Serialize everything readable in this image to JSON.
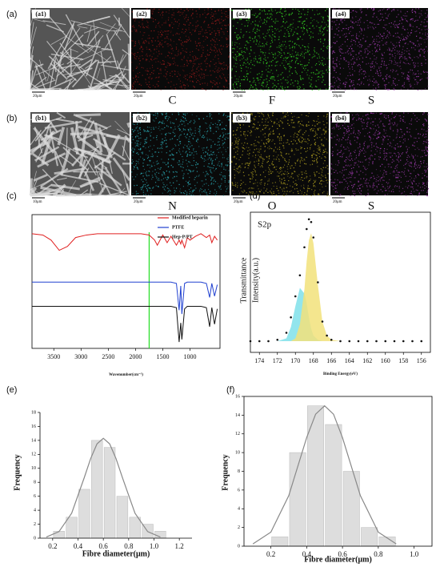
{
  "images": {
    "rows": [
      {
        "label": "(a)",
        "tiles": [
          {
            "label": "(a1)",
            "color": "#777777",
            "scale": "20μm"
          },
          {
            "label": "(a2)",
            "color": "#8a1a1a",
            "element": "C",
            "scale": "20μm"
          },
          {
            "label": "(a3)",
            "color": "#33cc22",
            "element": "F",
            "scale": "20μm"
          },
          {
            "label": "(a4)",
            "color": "#9a3aa8",
            "element": "S",
            "scale": "20μm"
          }
        ]
      },
      {
        "label": "(b)",
        "tiles": [
          {
            "label": "(b1)",
            "color": "#8a8a8a",
            "scale": "10μm"
          },
          {
            "label": "(b2)",
            "color": "#2aa6b0",
            "element": "N",
            "scale": "20μm"
          },
          {
            "label": "(b3)",
            "color": "#b0a020",
            "element": "O",
            "scale": "20μm"
          },
          {
            "label": "(b4)",
            "color": "#9a3aa8",
            "element": "S",
            "scale": "20μm"
          }
        ]
      }
    ]
  },
  "chart_data": [
    {
      "type": "line",
      "panel": "(c)",
      "x_label": "Wavenumber(cm⁻¹)",
      "y_label": "Transmittance",
      "xlim": [
        3900,
        450
      ],
      "xticks": [
        3500,
        3000,
        2500,
        2000,
        1500,
        1000
      ],
      "ylim": [
        -5,
        100
      ],
      "marker_line": {
        "x": 1750,
        "color": "#22dd22"
      },
      "legend": "top-right",
      "x": [
        3900,
        3700,
        3550,
        3400,
        3250,
        3100,
        2900,
        2700,
        2400,
        2100,
        1900,
        1750,
        1650,
        1600,
        1500,
        1420,
        1350,
        1250,
        1200,
        1170,
        1150,
        1100,
        1050,
        1000,
        900,
        800,
        700,
        640,
        600,
        550,
        500
      ],
      "series": [
        {
          "name": "Modified heparin",
          "color": "#e02020",
          "values": [
            85,
            84,
            80,
            72,
            75,
            82,
            84,
            85,
            85,
            85,
            85,
            84,
            80,
            76,
            84,
            78,
            83,
            76,
            80,
            77,
            80,
            74,
            82,
            80,
            83,
            85,
            82,
            84,
            78,
            83,
            80
          ]
        },
        {
          "name": "PTFE",
          "color": "#2040d0",
          "values": [
            47,
            47,
            47,
            47,
            47,
            47,
            47,
            47,
            47,
            47,
            47,
            47,
            47,
            47,
            47,
            47,
            47,
            46,
            25,
            44,
            22,
            46,
            47,
            47,
            47,
            47,
            46,
            35,
            46,
            36,
            45
          ]
        },
        {
          "name": "Hep-P/PT",
          "color": "#111111",
          "values": [
            28,
            28,
            28,
            28,
            28,
            28,
            28,
            28,
            28,
            28,
            28,
            28,
            28,
            28,
            28,
            28,
            28,
            27,
            0,
            15,
            2,
            26,
            28,
            28,
            28,
            28,
            27,
            12,
            27,
            14,
            26
          ]
        }
      ]
    },
    {
      "type": "xps",
      "panel": "(d)",
      "annotation": "S2p",
      "x_label": "Binding Energy(eV)",
      "y_label": "Intensity(a.u.)",
      "xlim": [
        175,
        155
      ],
      "xticks": [
        174,
        172,
        170,
        168,
        166,
        164,
        162,
        160,
        158,
        156
      ],
      "ylim": [
        0,
        100
      ],
      "x": [
        175,
        174,
        173,
        172,
        171,
        170.5,
        170,
        169.5,
        169,
        168.75,
        168.5,
        168.25,
        168,
        167.5,
        167,
        166.5,
        166,
        165,
        164,
        163,
        162,
        161,
        160,
        159,
        158,
        157,
        156
      ],
      "series": [
        {
          "color": "#7fe0ea",
          "fill": true,
          "values": [
            8,
            8,
            8,
            8,
            10,
            18,
            33,
            46,
            42,
            35,
            25,
            17,
            12,
            9,
            8,
            8,
            8,
            8,
            8,
            8,
            8,
            8,
            8,
            8,
            8,
            8,
            8
          ]
        },
        {
          "color": "#f2e27a",
          "fill": true,
          "values": [
            8,
            8,
            8,
            8,
            8,
            8,
            10,
            20,
            45,
            65,
            80,
            85,
            78,
            48,
            22,
            12,
            9,
            8,
            8,
            8,
            8,
            8,
            8,
            8,
            8,
            8,
            8
          ]
        },
        {
          "color": "#111111",
          "values": [
            8,
            8,
            8,
            9,
            14,
            25,
            40,
            55,
            75,
            88,
            95,
            93,
            82,
            50,
            22,
            12,
            9,
            8,
            8,
            8,
            8,
            8,
            8,
            8,
            8,
            8,
            8
          ]
        }
      ]
    },
    {
      "type": "histogram",
      "panel": "(e)",
      "x_label": "Fibre diameter(μm)",
      "y_label": "Frequency",
      "color": "#dddddd",
      "box": false,
      "bins": [
        0.2,
        0.3,
        0.4,
        0.5,
        0.6,
        0.7,
        0.8,
        0.9,
        1.0,
        1.1
      ],
      "values": [
        1,
        3,
        7,
        14,
        13,
        6,
        3,
        2,
        1
      ],
      "xlim": [
        0.1,
        1.3
      ],
      "xticks": [
        0.2,
        0.4,
        0.6,
        0.8,
        {
          "value": 1,
          "label": "1.0"
        },
        1.2
      ],
      "ylim": [
        0,
        18
      ],
      "yticks": [
        0,
        2,
        4,
        6,
        8,
        10,
        12,
        14,
        16,
        18
      ],
      "fit": {
        "color": "#888888",
        "x": [
          0.15,
          0.25,
          0.35,
          0.45,
          0.5,
          0.55,
          0.6,
          0.65,
          0.7,
          0.75,
          0.85,
          0.95,
          1.05
        ],
        "values": [
          0.16,
          0.94,
          3.57,
          8.7,
          11.4,
          13.5,
          14.3,
          13.5,
          11.4,
          8.7,
          3.57,
          0.94,
          0.16
        ]
      }
    },
    {
      "type": "histogram",
      "panel": "(f)",
      "x_label": "Fibre diameter(μm)",
      "y_label": "Frequency",
      "color": "#dddddd",
      "box": true,
      "bins": [
        0.2,
        0.3,
        0.4,
        0.5,
        0.6,
        0.7,
        0.8,
        0.9
      ],
      "values": [
        1,
        10,
        15,
        13,
        8,
        2,
        1
      ],
      "xlim": [
        0.05,
        1.1
      ],
      "xticks": [
        0.2,
        0.4,
        0.6,
        0.8,
        {
          "value": 1,
          "label": "1.0"
        }
      ],
      "ylim": [
        0,
        16
      ],
      "yticks": [
        0,
        2,
        4,
        6,
        8,
        10,
        12,
        14,
        16
      ],
      "fit": {
        "color": "#888888",
        "x": [
          0.1,
          0.2,
          0.3,
          0.4,
          0.45,
          0.5,
          0.55,
          0.6,
          0.7,
          0.8,
          0.9
        ],
        "values": [
          0.25,
          1.5,
          5.4,
          11.6,
          14.1,
          15,
          14.1,
          11.6,
          5.4,
          1.5,
          0.25
        ]
      }
    }
  ]
}
